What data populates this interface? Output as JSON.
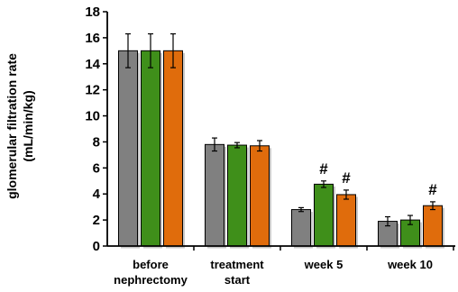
{
  "chart_data": {
    "type": "bar",
    "ylabel_lines": [
      "glomerular filtration rate",
      "(mL/min/kg)"
    ],
    "ylim": [
      0,
      18
    ],
    "yticks": [
      0,
      2,
      4,
      6,
      8,
      10,
      12,
      14,
      16,
      18
    ],
    "categories": [
      [
        "before",
        "nephrectomy"
      ],
      [
        "treatment",
        "start"
      ],
      [
        "week 5"
      ],
      [
        "week 10"
      ]
    ],
    "series": [
      {
        "color": "#808080",
        "values": [
          15.0,
          7.8,
          2.8,
          1.9
        ],
        "errors": [
          1.3,
          0.5,
          0.15,
          0.35
        ]
      },
      {
        "color": "#3f8f1a",
        "values": [
          15.0,
          7.75,
          4.75,
          2.0
        ],
        "errors": [
          1.3,
          0.2,
          0.25,
          0.35
        ]
      },
      {
        "color": "#e06c0c",
        "values": [
          15.0,
          7.7,
          3.95,
          3.1
        ],
        "errors": [
          1.3,
          0.4,
          0.35,
          0.3
        ]
      }
    ],
    "annotations": [
      {
        "category": 2,
        "series": 1,
        "text": "#"
      },
      {
        "category": 2,
        "series": 2,
        "text": "#"
      },
      {
        "category": 3,
        "series": 2,
        "text": "#"
      }
    ],
    "grid": false,
    "legend": "none"
  }
}
